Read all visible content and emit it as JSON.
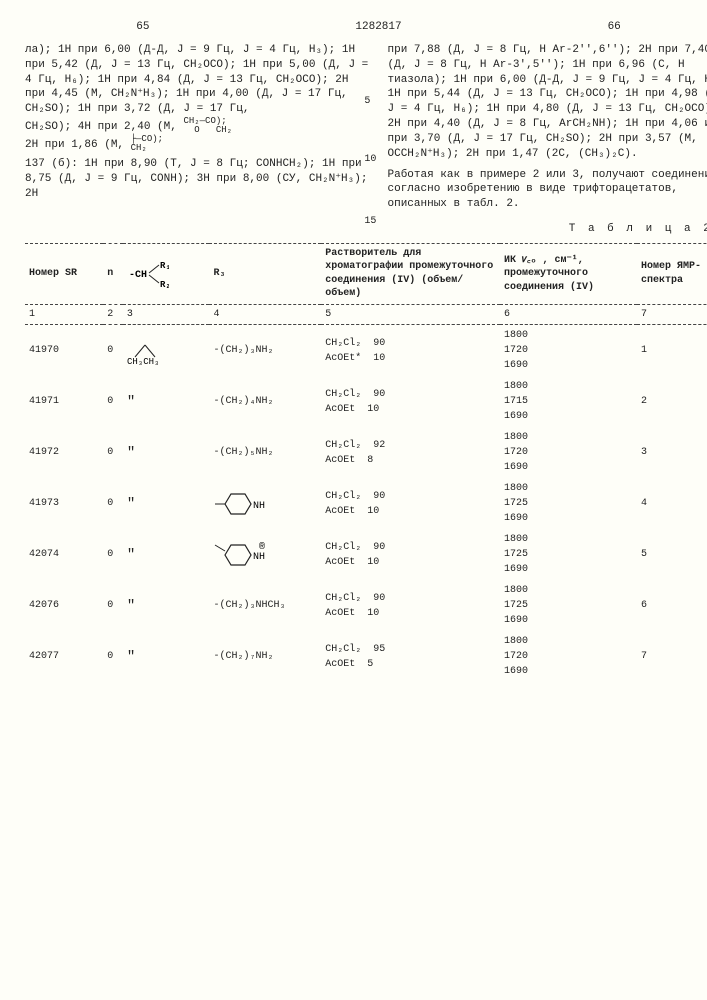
{
  "header": {
    "p65": "65",
    "doc": "1282817",
    "p66": "66"
  },
  "left_para": "ла); 1H при 6,00 (Д-Д, J = 9 Гц, J = 4 Гц, H₃); 1H при 5,42 (Д, J = 13 Гц, CH₂OCO); 1H при 5,00 (Д, J = 4 Гц, H₆); 1H при 4,84 (Д, J = 13 Гц, CH₂OCO); 2H при 4,45 (М, CH₂N⁺H₃); 1H при 4,00 (Д, J = 17 Гц, CH₂SO); 1H при 3,72 (Д, J = 17 Гц,",
  "left_para_b": "CH₂SO); 4H при 2,40 (М, ",
  "left_para_c": "2H при 1,86 (М, ",
  "left_para_d": "137 (б): 1H при 8,90 (Т, J = 8 Гц; CONHCH₂); 1H при 8,75 (Д, J = 9 Гц, CONH); 3H при 8,00 (CУ, CH₂N⁺H₃); 2H",
  "right_para": "при 7,88 (Д, J = 8 Гц, H Ar-2'',6''); 2H при 7,40 (Д, J = 8 Гц, H Ar-3',5''); 1H при 6,96 (С, H тиазола); 1H при 6,00 (Д-Д, J = 9 Гц, J = 4 Гц, H₃); 1H при 5,44 (Д, J = 13 Гц, CH₂OCO); 1H при 4,98 (Д, J = 4 Гц, H₆); 1H при 4,80 (Д, J = 13 Гц, CH₂OCO); 2H при 4,40 (Д, J = 8 Гц, ArCH₂NH); 1H при 4,06 и 1H при 3,70 (Д, J = 17 Гц, CH₂SO); 2H при 3,57 (М, OCCH₂N⁺H₃); 2H при 1,47 (2С, (CH₃)₂C).",
  "right_para_b": "Работая как в примере 2 или 3, получают соединения согласно изобретению в виде трифторацетатов, описанных в табл. 2.",
  "line_nums": {
    "l5": "5",
    "l10": "10",
    "l15": "15"
  },
  "table_label": "Т а б л и ц а  2 .",
  "columns": {
    "c1": "Номер SR",
    "c2": "n",
    "c3_top": "-CH",
    "c3_r1": "R₁",
    "c3_r2": "R₂",
    "c4": "R₃",
    "c5": "Растворитель для хроматографии промежуточного соединения (IV) (объем/объем)",
    "c6": "ИК 𝜈꜀ₒ , см⁻¹, промежуточного соединения (IV)",
    "c7": "Номер ЯМР-спектра"
  },
  "colnums": {
    "n1": "1",
    "n2": "2",
    "n3": "3",
    "n4": "4",
    "n5": "5",
    "n6": "6",
    "n7": "7"
  },
  "rows": [
    {
      "sr": "41970",
      "n": "0",
      "r12": "struct_ch3ch3",
      "r3": "-(CH₂)₃NH₂",
      "solv1": "CH₂Cl₂",
      "v1": "90",
      "solv2": "AcOEt*",
      "v2": "10",
      "ik1": "1800",
      "ik2": "1720",
      "ik3": "1690",
      "nmr": "1"
    },
    {
      "sr": "41971",
      "n": "0",
      "r12": "\"",
      "r3": "-(CH₂)₄NH₂",
      "solv1": "CH₂Cl₂",
      "v1": "90",
      "solv2": "AcOEt",
      "v2": "10",
      "ik1": "1800",
      "ik2": "1715",
      "ik3": "1690",
      "nmr": "2"
    },
    {
      "sr": "41972",
      "n": "0",
      "r12": "\"",
      "r3": "-(CH₂)₅NH₂",
      "solv1": "CH₂Cl₂",
      "v1": "92",
      "solv2": "AcOEt",
      "v2": "8",
      "ik1": "1800",
      "ik2": "1720",
      "ik3": "1690",
      "nmr": "3"
    },
    {
      "sr": "41973",
      "n": "0",
      "r12": "\"",
      "r3": "ring4",
      "solv1": "CH₂Cl₂",
      "v1": "90",
      "solv2": "AcOEt",
      "v2": "10",
      "ik1": "1800",
      "ik2": "1725",
      "ik3": "1690",
      "nmr": "4"
    },
    {
      "sr": "42074",
      "n": "0",
      "r12": "\"",
      "r3": "ring3",
      "solv1": "CH₂Cl₂",
      "v1": "90",
      "solv2": "AcOEt",
      "v2": "10",
      "ik1": "1800",
      "ik2": "1725",
      "ik3": "1690",
      "nmr": "5"
    },
    {
      "sr": "42076",
      "n": "0",
      "r12": "\"",
      "r3": "-(CH₂)₃NHCH₃",
      "solv1": "CH₂Cl₂",
      "v1": "90",
      "solv2": "AcOEt",
      "v2": "10",
      "ik1": "1800",
      "ik2": "1725",
      "ik3": "1690",
      "nmr": "6"
    },
    {
      "sr": "42077",
      "n": "0",
      "r12": "\"",
      "r3": "-(CH₂)₇NH₂",
      "solv1": "CH₂Cl₂",
      "v1": "95",
      "solv2": "AcOEt",
      "v2": "5",
      "ik1": "1800",
      "ik2": "1720",
      "ik3": "1690",
      "nmr": "7"
    }
  ],
  "reg_mark": "®",
  "struct_frag_a": "CH₂—CO",
  "struct_frag_b": "CH₂",
  "struct_frag_c": "O",
  "struct_frag_d": "—CO);",
  "struct_br": "├",
  "colors": {
    "ink": "#222222",
    "paper": "#fefef8",
    "dash": "#444444"
  }
}
